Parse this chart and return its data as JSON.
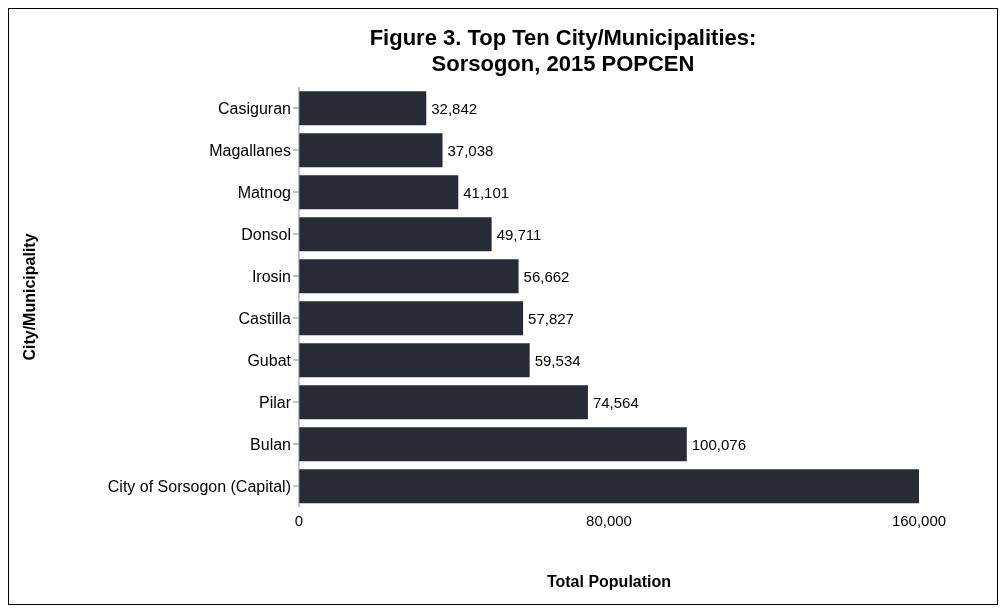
{
  "chart_data": {
    "type": "bar",
    "orientation": "horizontal",
    "title": "Figure 3. Top Ten City/Municipalities:\nSorsogon, 2015 POPCEN",
    "xlabel": "Total Population",
    "ylabel": "City/Municipality",
    "categories": [
      "Casiguran",
      "Magallanes",
      "Matnog",
      "Donsol",
      "Irosin",
      "Castilla",
      "Gubat",
      "Pilar",
      "Bulan",
      "City of Sorsogon (Capital)"
    ],
    "values": [
      32842,
      37038,
      41101,
      49711,
      56662,
      57827,
      59534,
      74564,
      100076,
      160000
    ],
    "value_labels": [
      "32,842",
      "37,038",
      "41,101",
      "49,711",
      "56,662",
      "57,827",
      "59,534",
      "74,564",
      "100,076",
      null
    ],
    "color": "#262b36",
    "xlim": [
      0,
      160000
    ],
    "xticks": [
      0,
      {
        "value": 80000,
        "label": "80,000"
      },
      {
        "value": 160000,
        "label": "160,000"
      }
    ],
    "grid": false,
    "legend": false
  }
}
